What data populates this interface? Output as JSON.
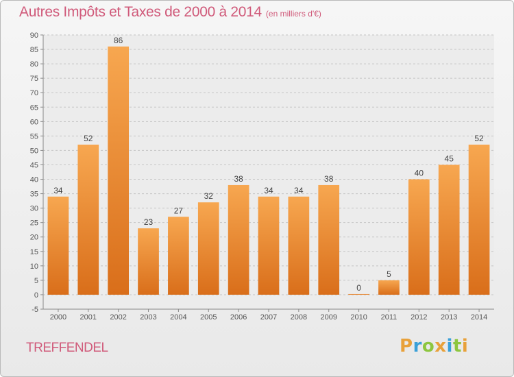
{
  "chart_data": {
    "type": "bar",
    "title": "Autres Impôts et Taxes de 2000 à 2014",
    "subtitle": "(en milliers d'€)",
    "categories": [
      "2000",
      "2001",
      "2002",
      "2003",
      "2004",
      "2005",
      "2006",
      "2007",
      "2008",
      "2009",
      "2010",
      "2011",
      "2012",
      "2013",
      "2014"
    ],
    "values": [
      34,
      52,
      86,
      23,
      27,
      32,
      38,
      34,
      34,
      38,
      0,
      5,
      40,
      45,
      52
    ],
    "ylim": [
      -5,
      90
    ],
    "yticks": [
      -5,
      0,
      5,
      10,
      15,
      20,
      25,
      30,
      35,
      40,
      45,
      50,
      55,
      60,
      65,
      70,
      75,
      80,
      85,
      90
    ],
    "grid": true,
    "xlabel": "",
    "ylabel": "",
    "bar_color": "#f08c30"
  },
  "footer": {
    "commune": "TREFFENDEL",
    "logo_letters": [
      "P",
      "r",
      "o",
      "x",
      "i",
      "t",
      "i"
    ],
    "logo_colors": [
      "#e8a13a",
      "#3aa0d8",
      "#8dc63f",
      "#e8a13a",
      "#3aa0d8",
      "#8dc63f",
      "#e8a13a"
    ]
  }
}
